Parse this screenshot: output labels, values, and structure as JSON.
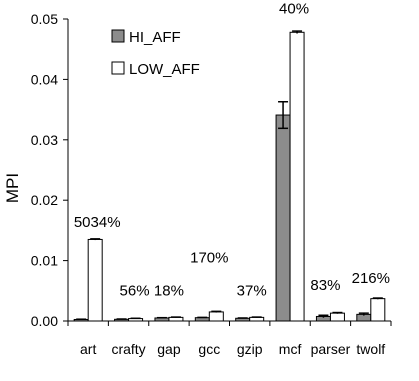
{
  "chart_data": {
    "type": "bar",
    "ylabel": "MPI",
    "ylim": [
      0,
      0.05
    ],
    "yticks": [
      "0.00",
      "0.01",
      "0.02",
      "0.03",
      "0.04",
      "0.05"
    ],
    "categories": [
      "art",
      "crafty",
      "gap",
      "gcc",
      "gzip",
      "mcf",
      "parser",
      "twolf"
    ],
    "series": [
      {
        "name": "HI_AFF",
        "color": "#8c8c8c",
        "values": [
          0.00025,
          0.00028,
          0.0005,
          0.00055,
          0.00045,
          0.0341,
          0.00075,
          0.0011
        ],
        "errors": [
          5e-05,
          5e-05,
          5e-05,
          5e-05,
          5e-05,
          0.0022,
          0.0002,
          0.0002
        ]
      },
      {
        "name": "LOW_AFF",
        "color": "#ffffff",
        "values": [
          0.0135,
          0.0004,
          0.0006,
          0.0015,
          0.0006,
          0.0478,
          0.0013,
          0.0037
        ],
        "errors": [
          0.0001,
          5e-05,
          5e-05,
          0.0001,
          5e-05,
          0.0002,
          0.0001,
          0.0001
        ]
      }
    ],
    "annotations": [
      "5034%",
      "56%",
      "18%",
      "170%",
      "37%",
      "40%",
      "83%",
      "216%"
    ],
    "legend_position": "top-left"
  }
}
